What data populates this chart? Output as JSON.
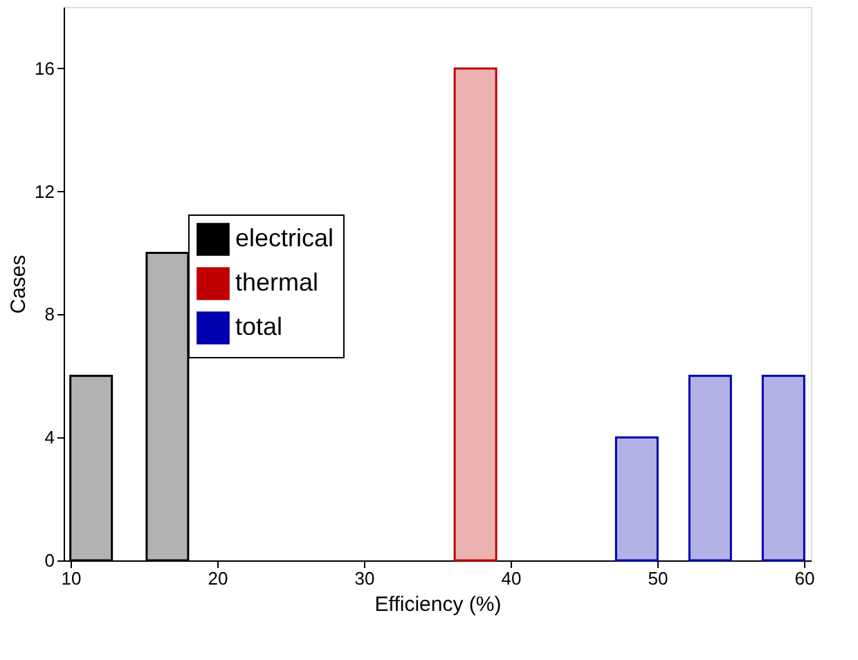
{
  "chart_data": {
    "type": "bar",
    "xlabel": "Efficiency (%)",
    "ylabel": "Cases",
    "xlim": [
      10,
      60
    ],
    "xticks": [
      10,
      20,
      30,
      40,
      50,
      60
    ],
    "ylim": [
      0,
      18
    ],
    "yticks": [
      0,
      4,
      8,
      12,
      16
    ],
    "series": [
      {
        "name": "electrical",
        "color": "#000000",
        "x": [
          11.4,
          16.6
        ],
        "values": [
          6,
          10
        ]
      },
      {
        "name": "thermal",
        "color": "#c00000",
        "x": [
          37.6
        ],
        "values": [
          16
        ]
      },
      {
        "name": "total",
        "color": "#0000b0",
        "x": [
          48.6,
          53.6,
          58.6
        ],
        "values": [
          4,
          6,
          6
        ]
      }
    ],
    "legend": "left",
    "grid": false
  }
}
